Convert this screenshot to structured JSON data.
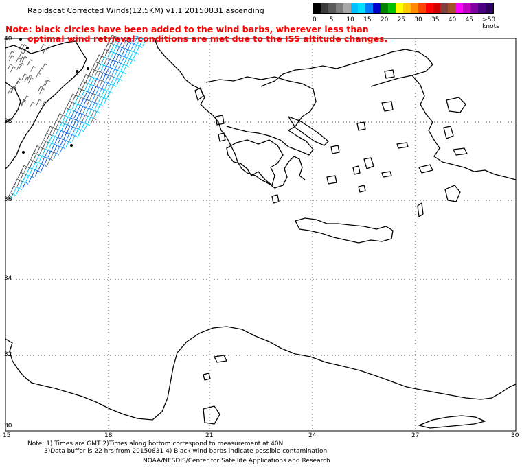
{
  "title": "Rapidscat Corrected Winds(12.5KM) v1.1 20150831 ascending",
  "note": {
    "line1": "Note: black circles have been added to the wind barbs, wherever less than",
    "line2": "optimal wind retrieval conditions are met due to the ISS altitude changes."
  },
  "legend": {
    "colors": [
      "#000000",
      "#3a3a3a",
      "#5a5a5a",
      "#7f7f7f",
      "#a9a9a9",
      "#00bfff",
      "#00e0ff",
      "#0080ff",
      "#0000cd",
      "#008000",
      "#00c000",
      "#ffff00",
      "#ffc800",
      "#ff8c00",
      "#ff4500",
      "#ff0000",
      "#d00000",
      "#804040",
      "#a0522d",
      "#ff00ff",
      "#c000c0",
      "#8000a0",
      "#4b0082",
      "#300060"
    ],
    "labels": [
      "0",
      "5",
      "10",
      "15",
      "20",
      "25",
      "30",
      "35",
      "40",
      "45",
      ">50 knots"
    ]
  },
  "axes": {
    "lat_labels": [
      "40",
      "38",
      "36",
      "34",
      "32",
      "30"
    ],
    "lon_labels": [
      "15",
      "18",
      "21",
      "24",
      "27",
      "30"
    ]
  },
  "footer": {
    "line1": "Note: 1) Times are GMT 2)Times along bottom correspond to measurement at 40N",
    "line2": "3)Data buffer is 22 hrs from 20150831 4) Black wind barbs indicate possible contamination",
    "line3": "NOAA/NESDIS/Center for Satellite Applications and Research"
  }
}
